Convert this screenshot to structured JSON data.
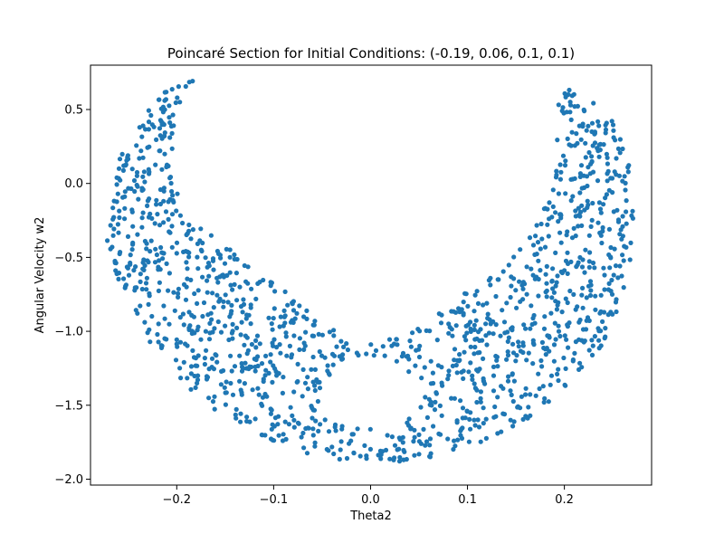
{
  "chart_data": {
    "type": "scatter",
    "title": "Poincaré Section for Initial Conditions: (-0.19, 0.06, 0.1, 0.1)",
    "xlabel": "Theta2",
    "ylabel": "Angular Velocity w2",
    "xlim": [
      -0.289,
      0.29
    ],
    "ylim": [
      -2.04,
      0.8
    ],
    "xticks": [
      -0.2,
      -0.1,
      0.0,
      0.1,
      0.2
    ],
    "xtick_labels": [
      "−0.2",
      "−0.1",
      "0.0",
      "0.1",
      "0.2"
    ],
    "yticks": [
      -2.0,
      -1.5,
      -1.0,
      -0.5,
      0.0,
      0.5
    ],
    "ytick_labels": [
      "−2.0",
      "−1.5",
      "−1.0",
      "−0.5",
      "0.0",
      "0.5"
    ],
    "grid": false,
    "color": "#1f77b4",
    "series": [
      {
        "outer_boundary": [
          [
            -0.18,
            0.73
          ],
          [
            -0.2,
            0.68
          ],
          [
            -0.225,
            0.55
          ],
          [
            -0.245,
            0.36
          ],
          [
            -0.262,
            0.12
          ],
          [
            -0.272,
            -0.15
          ],
          [
            -0.272,
            -0.4
          ],
          [
            -0.262,
            -0.68
          ],
          [
            -0.24,
            -0.96
          ],
          [
            -0.21,
            -1.24
          ],
          [
            -0.17,
            -1.5
          ],
          [
            -0.12,
            -1.7
          ],
          [
            -0.06,
            -1.84
          ],
          [
            0.0,
            -1.9
          ],
          [
            0.06,
            -1.86
          ],
          [
            0.12,
            -1.74
          ],
          [
            0.17,
            -1.56
          ],
          [
            0.21,
            -1.34
          ],
          [
            0.24,
            -1.08
          ],
          [
            0.26,
            -0.78
          ],
          [
            0.272,
            -0.45
          ],
          [
            0.272,
            -0.1
          ],
          [
            0.265,
            0.2
          ],
          [
            0.25,
            0.42
          ],
          [
            0.225,
            0.58
          ],
          [
            0.195,
            0.68
          ]
        ],
        "inner_boundary": [
          [
            -0.18,
            0.73
          ],
          [
            -0.19,
            0.6
          ],
          [
            -0.2,
            0.46
          ],
          [
            -0.205,
            0.26
          ],
          [
            -0.2,
            0.05
          ],
          [
            -0.185,
            -0.16
          ],
          [
            -0.155,
            -0.38
          ],
          [
            -0.11,
            -0.62
          ],
          [
            -0.07,
            -0.82
          ],
          [
            -0.035,
            -1.0
          ],
          [
            0.0,
            -1.08
          ],
          [
            0.035,
            -1.02
          ],
          [
            0.07,
            -0.87
          ],
          [
            0.11,
            -0.68
          ],
          [
            0.15,
            -0.47
          ],
          [
            0.17,
            -0.28
          ],
          [
            0.185,
            -0.05
          ],
          [
            0.19,
            0.18
          ],
          [
            0.192,
            0.4
          ],
          [
            0.195,
            0.68
          ]
        ],
        "hole_boundary": [
          [
            -0.055,
            -1.44
          ],
          [
            -0.05,
            -1.34
          ],
          [
            -0.03,
            -1.22
          ],
          [
            0.0,
            -1.17
          ],
          [
            0.03,
            -1.22
          ],
          [
            0.05,
            -1.34
          ],
          [
            0.055,
            -1.44
          ],
          [
            0.05,
            -1.54
          ],
          [
            0.03,
            -1.63
          ],
          [
            0.0,
            -1.66
          ],
          [
            -0.03,
            -1.63
          ],
          [
            -0.05,
            -1.54
          ]
        ],
        "point_count": 1400
      }
    ]
  }
}
